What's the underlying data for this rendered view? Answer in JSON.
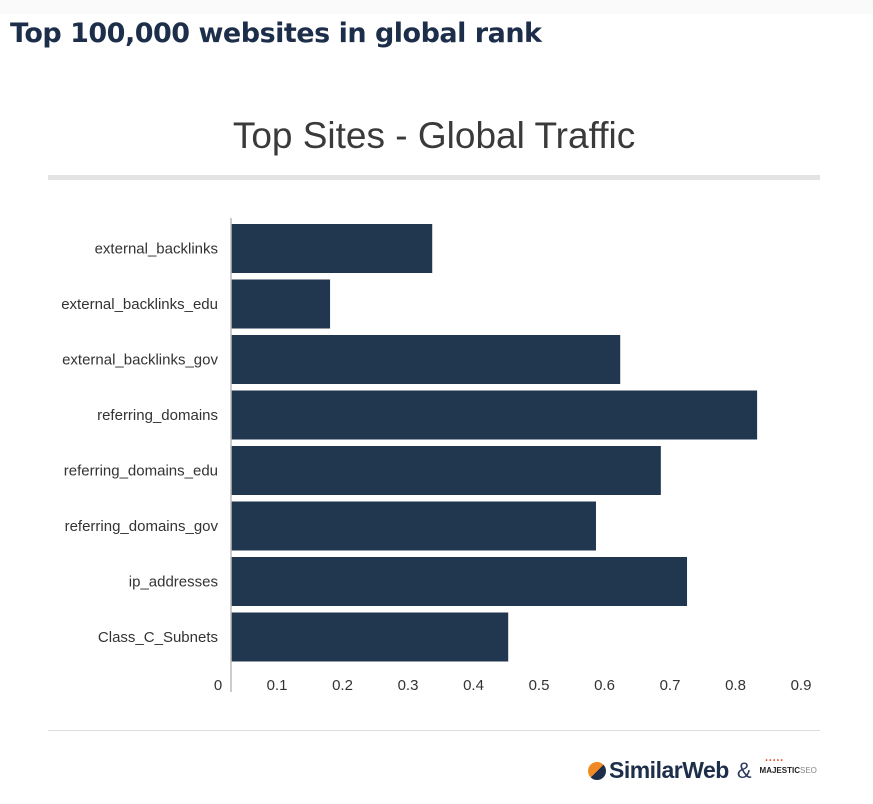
{
  "heading": "Top 100,000 websites in global rank",
  "chart_data": {
    "type": "bar",
    "orientation": "horizontal",
    "title": "Top Sites - Global Traffic",
    "categories": [
      "external_backlinks",
      "external_backlinks_edu",
      "external_backlinks_gov",
      "referring_domains",
      "referring_domains_edu",
      "referring_domains_gov",
      "ip_addresses",
      "Class_C_Subnets"
    ],
    "values": [
      0.337,
      0.181,
      0.624,
      0.833,
      0.686,
      0.587,
      0.726,
      0.453
    ],
    "xticks": [
      "0",
      "0.1",
      "0.2",
      "0.3",
      "0.4",
      "0.5",
      "0.6",
      "0.7",
      "0.8",
      "0.9"
    ],
    "xlim": [
      0,
      0.9
    ],
    "bar_color": "#20374f",
    "xlabel": "",
    "ylabel": ""
  },
  "footer": {
    "logo1": "SimilarWeb",
    "amp": "&",
    "logo2_main": "MAJESTIC",
    "logo2_sub": "SEO"
  }
}
